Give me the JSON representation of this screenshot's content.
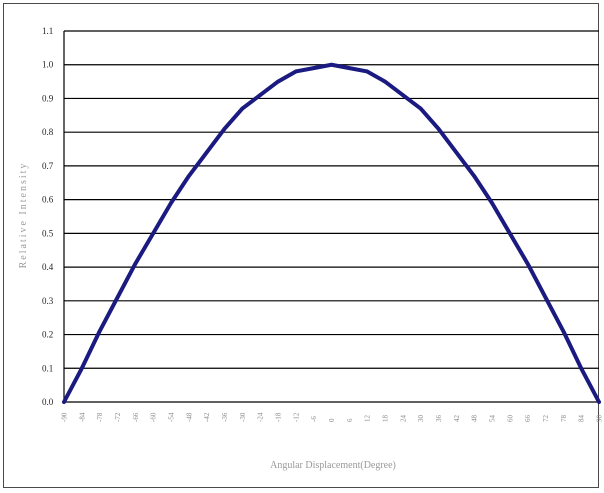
{
  "chart_data": {
    "type": "line",
    "title": "",
    "xlabel": "Angular Displacement(Degree)",
    "ylabel": "Relative Intensity",
    "ylim": [
      0.0,
      1.1
    ],
    "xlim": [
      -90,
      90
    ],
    "yticks": [
      "0.0",
      "0.1",
      "0.2",
      "0.3",
      "0.4",
      "0.5",
      "0.6",
      "0.7",
      "0.8",
      "0.9",
      "1.0",
      "1.1"
    ],
    "xticks": [
      "-90",
      "-84",
      "-78",
      "-72",
      "-66",
      "-60",
      "-54",
      "-48",
      "-42",
      "-36",
      "-30",
      "-24",
      "-18",
      "-12",
      "-6",
      "0",
      "6",
      "12",
      "18",
      "24",
      "30",
      "36",
      "42",
      "48",
      "54",
      "60",
      "66",
      "72",
      "78",
      "84",
      "90"
    ],
    "grid": true,
    "legend": "none",
    "series": [
      {
        "color": "#1a1a80",
        "x": [
          -90,
          -84,
          -78,
          -72,
          -66,
          -60,
          -54,
          -48,
          -42,
          -36,
          -30,
          -24,
          -18,
          -12,
          -6,
          0,
          6,
          12,
          18,
          24,
          30,
          36,
          42,
          48,
          54,
          60,
          66,
          72,
          78,
          84,
          90
        ],
        "values": [
          0.0,
          0.1,
          0.21,
          0.31,
          0.41,
          0.5,
          0.59,
          0.67,
          0.74,
          0.81,
          0.87,
          0.91,
          0.95,
          0.98,
          0.99,
          1.0,
          0.99,
          0.98,
          0.95,
          0.91,
          0.87,
          0.81,
          0.74,
          0.67,
          0.59,
          0.5,
          0.41,
          0.31,
          0.21,
          0.1,
          0.0
        ]
      }
    ]
  }
}
